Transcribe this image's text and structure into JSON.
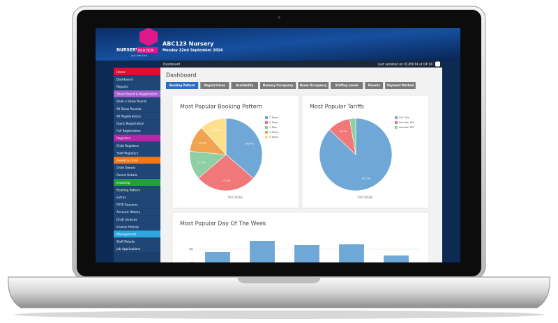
{
  "header": {
    "logo_text": "NURSERY",
    "logo_box": "IN A BOX",
    "tagline": "just Add Kids",
    "title": "ABC123 Nursery",
    "date": "Monday 22nd September 2014"
  },
  "breadcrumb": "Dashboard",
  "last_updated": "Last updated on 01/09/14 at 04:14",
  "menu": [
    {
      "label": "Home",
      "color": "#e0102b"
    },
    {
      "label": "Dashboard"
    },
    {
      "label": "Reports"
    },
    {
      "label": "Show Round & Registration",
      "color": "#a65fd0"
    },
    {
      "label": "Book a Show Round"
    },
    {
      "label": "All Show Rounds"
    },
    {
      "label": "All Registrations"
    },
    {
      "label": "Quick Registration"
    },
    {
      "label": "Full Registration"
    },
    {
      "label": "Registers",
      "color": "#b526a8"
    },
    {
      "label": "Child Registers"
    },
    {
      "label": "Staff Registers"
    },
    {
      "label": "Parent & Child",
      "color": "#f0781a"
    },
    {
      "label": "Child Details"
    },
    {
      "label": "Parent Details"
    },
    {
      "label": "Invoicing",
      "color": "#25a22a"
    },
    {
      "label": "Booking Pattern"
    },
    {
      "label": "Extras"
    },
    {
      "label": "FEYE Sessions"
    },
    {
      "label": "Account History"
    },
    {
      "label": "Draft Invoices"
    },
    {
      "label": "Invoice History"
    },
    {
      "label": "Management",
      "color": "#2ea6de"
    },
    {
      "label": "Staff Details"
    },
    {
      "label": "Job Applications"
    }
  ],
  "page_title": "Dashboard",
  "tabs": [
    "Booking Pattern",
    "Registrations",
    "Availability",
    "Nursery Occupancy",
    "Room Occupancy",
    "Staffing Levels",
    "Parents",
    "Payment Method"
  ],
  "active_tab": 0,
  "charts": [
    {
      "type": "pie",
      "title": "Most Popular Booking Pattern",
      "caption": "THIS WEEK",
      "categories": [
        "3 Days",
        "2 Days",
        "1 Day",
        "4 Days",
        "5 Days"
      ],
      "values": [
        36.4,
        27.3,
        12.7,
        11.8,
        11.8
      ],
      "value_labels": [
        "36.4%",
        "27.3%",
        "12.7%",
        "11.8%",
        "11.8%"
      ],
      "colors": [
        "#6fa8d6",
        "#f07878",
        "#8ecfa4",
        "#f0a452",
        "#fde08c"
      ]
    },
    {
      "type": "pie",
      "title": "Most Popular Tariffs",
      "caption": "THIS WEEK",
      "categories": [
        "Full Day",
        "Session AM",
        "Session PM"
      ],
      "values": [
        87.1,
        10.2,
        2.7
      ],
      "value_labels": [
        "87.1%",
        "10.2%",
        null
      ],
      "colors": [
        "#6fa8d6",
        "#f07878",
        "#8ecfa4"
      ]
    },
    {
      "type": "bar",
      "title": "Most Popular Day Of The Week",
      "values": [
        56,
        72,
        66,
        67,
        51
      ],
      "color": "#6fa8d6",
      "ylim": [
        0,
        80
      ],
      "yticks": [
        40,
        60
      ],
      "grid": true
    }
  ]
}
